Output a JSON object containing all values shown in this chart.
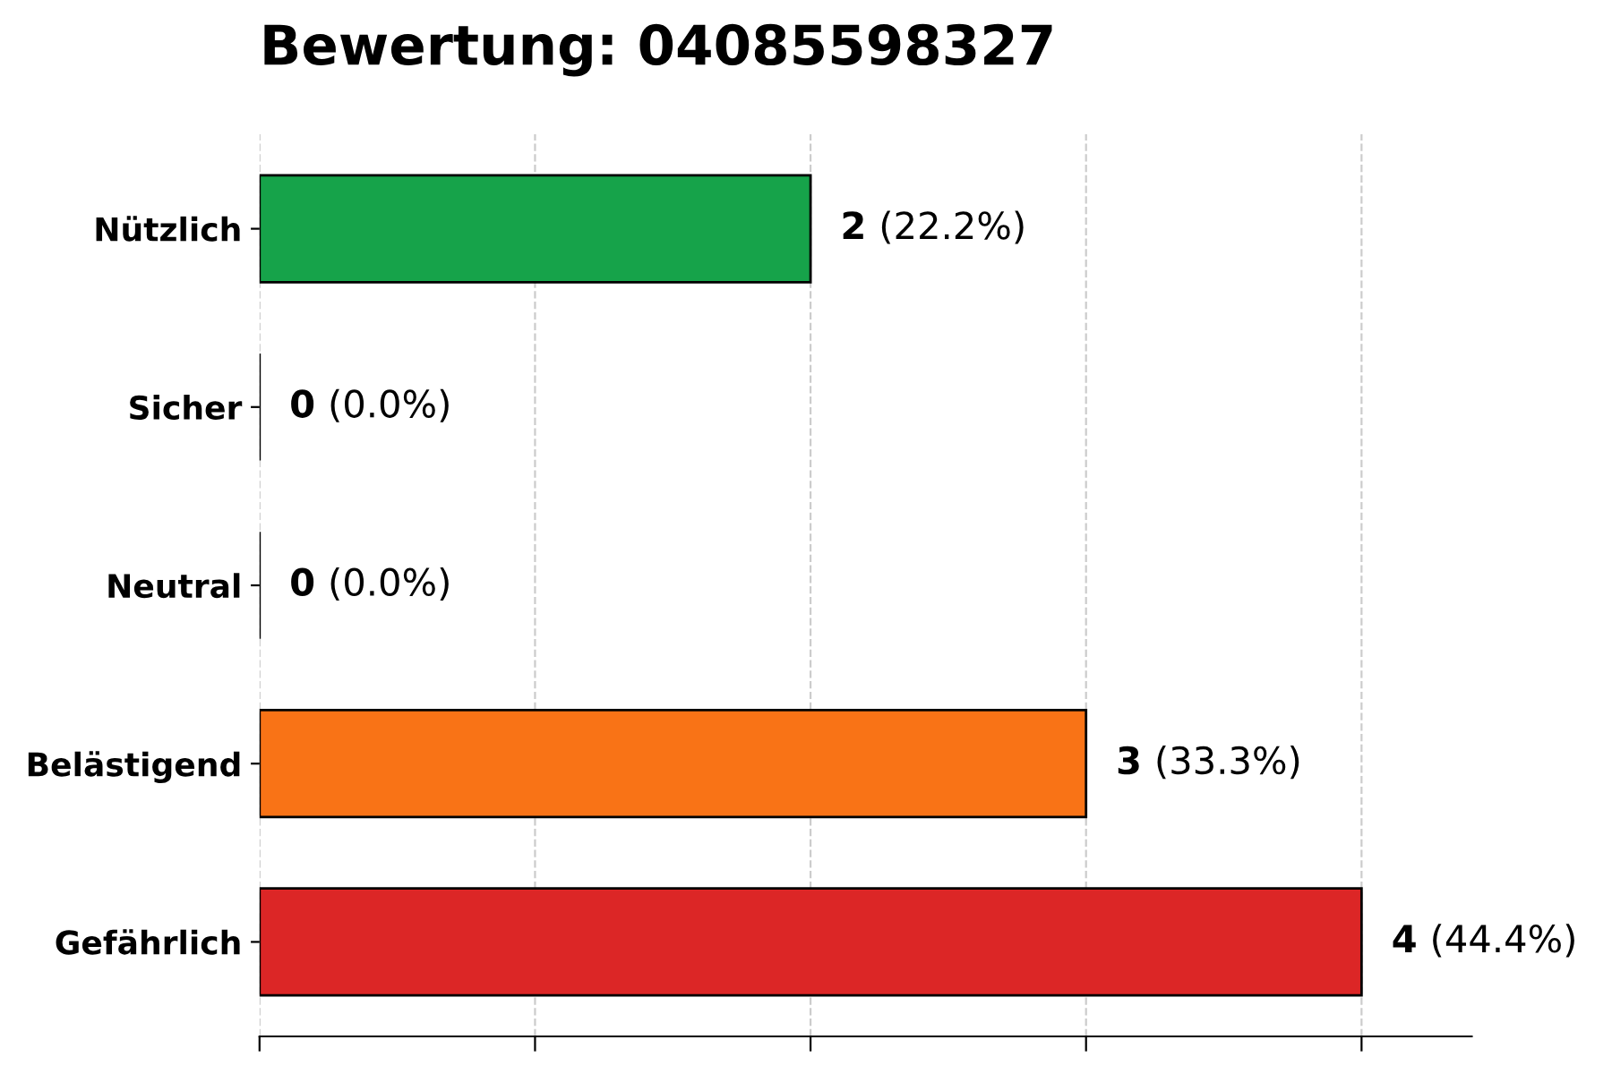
{
  "chart_data": {
    "type": "bar",
    "orientation": "horizontal",
    "title": "Bewertung: 04085598327",
    "categories": [
      "Nützlich",
      "Sicher",
      "Neutral",
      "Belästigend",
      "Gefährlich"
    ],
    "values": [
      2,
      0,
      0,
      3,
      4
    ],
    "colors": [
      "#16a34a",
      "#000000",
      "#000000",
      "#f97316",
      "#dc2626"
    ],
    "value_labels": [
      "2 (22.2%)",
      "0 (0.0%)",
      "0 (0.0%)",
      "3 (33.3%)",
      "4 (44.4%)"
    ],
    "xlim": [
      0,
      4.4
    ],
    "xticks": [
      {
        "value": 0,
        "label": null
      },
      {
        "value": 1,
        "label": null
      },
      {
        "value": 2,
        "label": null
      },
      {
        "value": 3,
        "label": null
      },
      {
        "value": 4,
        "label": null
      }
    ],
    "tick_labels": "y",
    "grid": "x",
    "legend": false
  }
}
